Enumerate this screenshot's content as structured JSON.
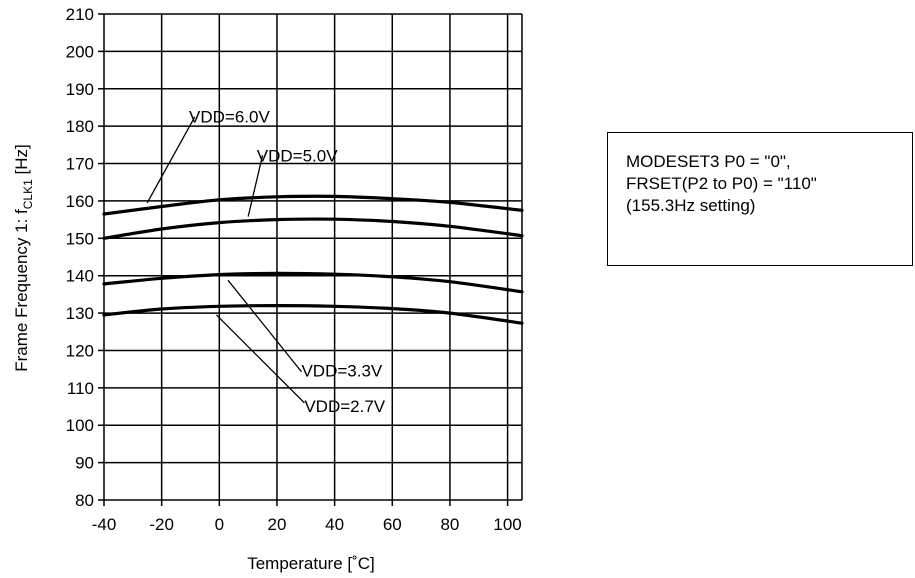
{
  "chart_data": {
    "type": "line",
    "xlabel": "Temperature [˚C]",
    "ylabel_main": "Frame Frequency 1: f",
    "ylabel_sub": "CLK1",
    "ylabel_unit": " [Hz]",
    "xlim": [
      -40,
      105
    ],
    "ylim": [
      80,
      210
    ],
    "xticks": [
      -40,
      -20,
      0,
      20,
      40,
      60,
      80,
      100
    ],
    "yticks": [
      80,
      90,
      100,
      110,
      120,
      130,
      140,
      150,
      160,
      170,
      180,
      190,
      200,
      210
    ],
    "grid": true,
    "series": [
      {
        "name": "VDD=6.0V",
        "x": [
          -40,
          -20,
          0,
          20,
          40,
          60,
          80,
          105
        ],
        "y": [
          156.5,
          158.5,
          160.3,
          161.1,
          161.2,
          160.6,
          159.6,
          157.5
        ]
      },
      {
        "name": "VDD=5.0V",
        "x": [
          -40,
          -20,
          0,
          20,
          40,
          60,
          80,
          105
        ],
        "y": [
          150.0,
          152.5,
          154.2,
          155.0,
          155.1,
          154.5,
          153.2,
          150.7
        ]
      },
      {
        "name": "VDD=3.3V",
        "x": [
          -40,
          -20,
          0,
          20,
          40,
          60,
          80,
          105
        ],
        "y": [
          137.8,
          139.3,
          140.3,
          140.6,
          140.4,
          139.7,
          138.4,
          135.7
        ]
      },
      {
        "name": "VDD=2.7V",
        "x": [
          -40,
          -20,
          0,
          20,
          40,
          60,
          80,
          105
        ],
        "y": [
          129.5,
          131.1,
          131.8,
          132.0,
          131.8,
          131.2,
          130.0,
          127.3
        ]
      }
    ],
    "annotations": [
      {
        "text": "VDD=6.0V",
        "label_at": [
          -10.5,
          181
        ],
        "pointer_from": [
          -8.5,
          182.5
        ],
        "pointer_to": [
          -25,
          159.5
        ]
      },
      {
        "text": "VDD=5.0V",
        "label_at": [
          13,
          170.5
        ],
        "pointer_from": [
          15,
          172.2
        ],
        "pointer_to": [
          10,
          155.8
        ]
      },
      {
        "text": "VDD=3.3V",
        "label_at": [
          28.5,
          113
        ],
        "pointer_from": [
          28.5,
          114.3
        ],
        "pointer_to": [
          3,
          138.8
        ]
      },
      {
        "text": "VDD=2.7V",
        "label_at": [
          29.5,
          103.5
        ],
        "pointer_from": [
          29.5,
          106
        ],
        "pointer_to": [
          -1,
          129.5
        ]
      }
    ]
  },
  "note": {
    "line1": "MODESET3 P0 = \"0\",",
    "line2": "FRSET(P2 to P0) = \"110\"",
    "line3": "(155.3Hz setting)"
  }
}
